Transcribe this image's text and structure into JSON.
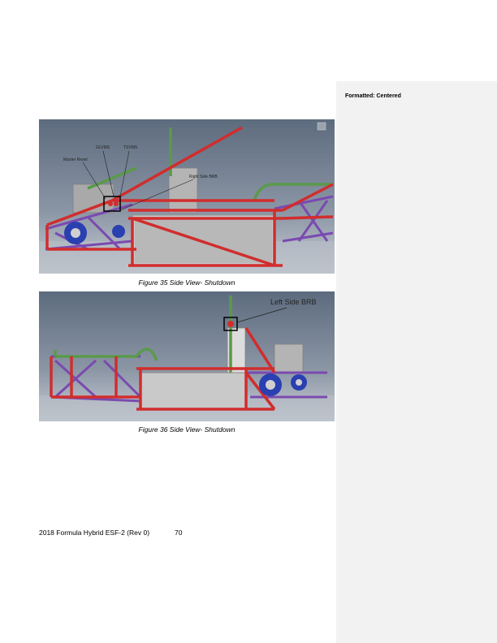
{
  "comments": {
    "title": "Formatted: Centered"
  },
  "figures": [
    {
      "caption": "Figure 35 Side View- Shutdown",
      "labels": {
        "glvms": "GLVMS",
        "tsvms": "TSVMS",
        "master_reset": "Master Reset",
        "right_brb": "Right Side BRB"
      }
    },
    {
      "caption": "Figure 36 Side View- Shutdown",
      "labels": {
        "left_brb": "Left Side BRB"
      }
    }
  ],
  "footer": {
    "text": "2018 Formula Hybrid ESF-2 (Rev 0)",
    "page": "70"
  }
}
